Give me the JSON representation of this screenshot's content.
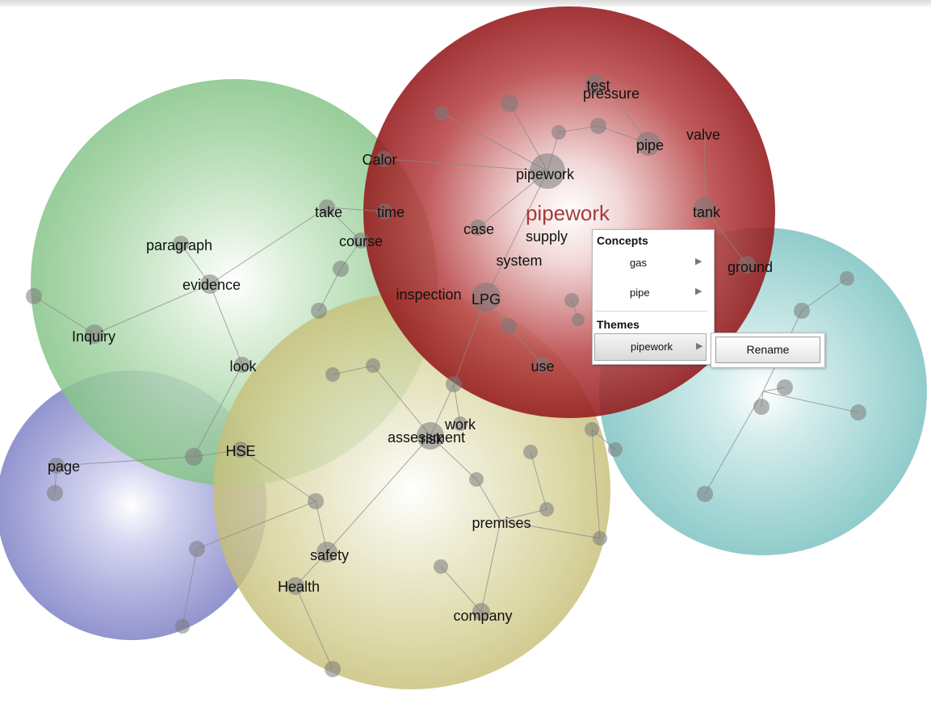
{
  "themes": [
    {
      "name": "pipework",
      "color": "#a31b1e",
      "label": "pipework"
    },
    {
      "name": "evidence",
      "color": "#5ab65c",
      "label": ""
    },
    {
      "name": "assessment",
      "color": "#b5ac45",
      "label": ""
    },
    {
      "name": "page",
      "color": "#6a6ab8",
      "label": ""
    },
    {
      "name": "ground",
      "color": "#4aaeae",
      "label": ""
    }
  ],
  "concepts": [
    "test",
    "pressure",
    "valve",
    "pipe",
    "Calor",
    "pipework",
    "tank",
    "take",
    "time",
    "case",
    "supply",
    "paragraph",
    "course",
    "system",
    "ground",
    "evidence",
    "inspection",
    "LPG",
    "Inquiry",
    "look",
    "use",
    "work",
    "assessment",
    "risk",
    "HSE",
    "page",
    "premises",
    "safety",
    "Health",
    "company"
  ],
  "context_menu": {
    "concepts_header": "Concepts",
    "concept_items": [
      {
        "label": "gas",
        "arrow": "▶"
      },
      {
        "label": "pipe",
        "arrow": "▶"
      }
    ],
    "themes_header": "Themes",
    "theme_items": [
      {
        "label": "pipework",
        "arrow": "▶",
        "selected": true
      }
    ],
    "submenu": {
      "rename_label": "Rename"
    }
  }
}
